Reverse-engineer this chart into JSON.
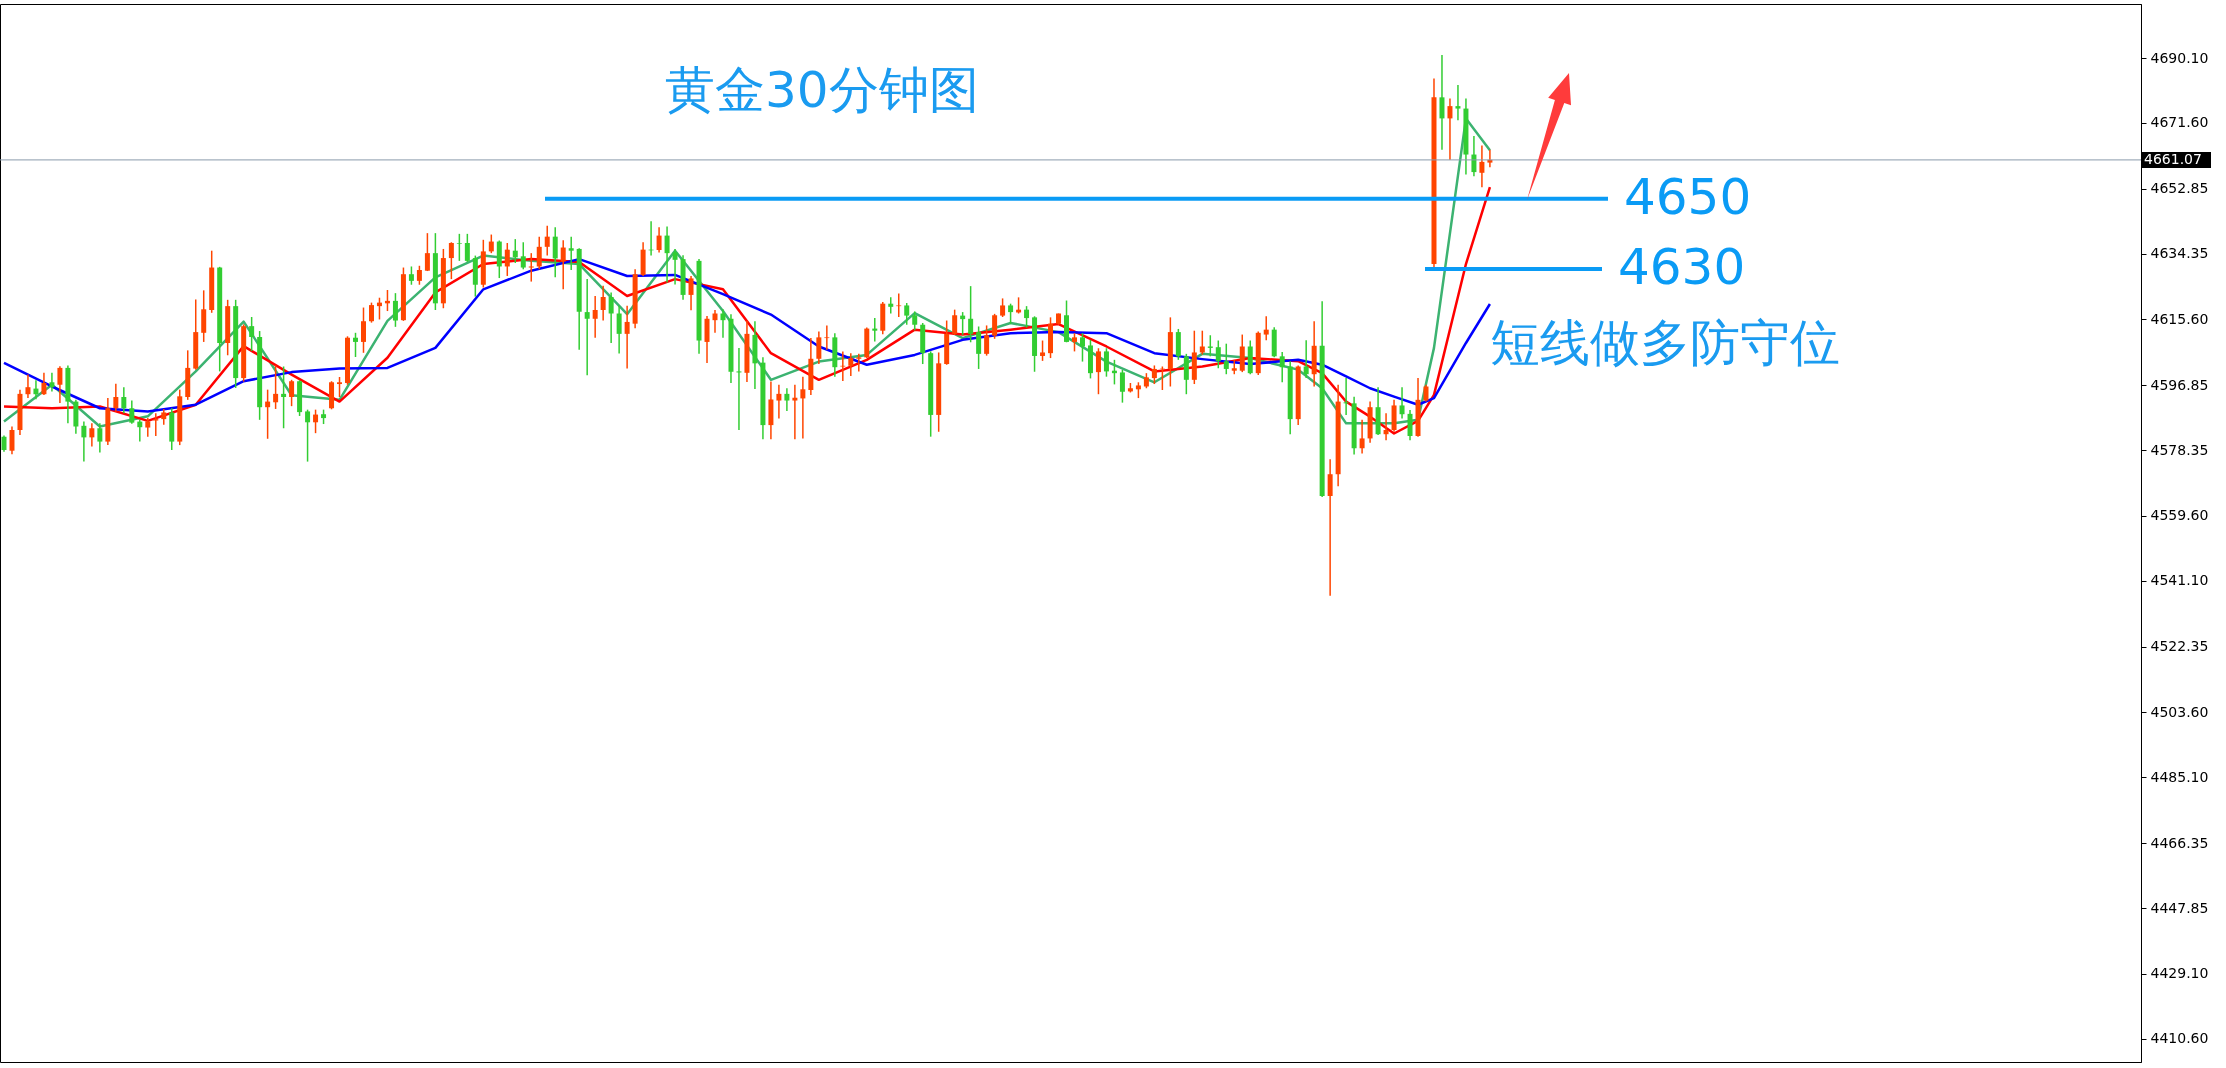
{
  "chart_data": {
    "type": "candlestick",
    "title": "黄金30分钟图",
    "tick_labels": "y",
    "categories": [
      null,
      null,
      null,
      null,
      null,
      null,
      null,
      null,
      null,
      null,
      null,
      null,
      null,
      null,
      null,
      null,
      null,
      null,
      null,
      null,
      null,
      null,
      null,
      null,
      null,
      null,
      null,
      null,
      null,
      null,
      null,
      null,
      null,
      null,
      null,
      null,
      null,
      null,
      null,
      null,
      null,
      null,
      null,
      null,
      null,
      null,
      null,
      null,
      null,
      null,
      null,
      null,
      null,
      null,
      null,
      null,
      null,
      null,
      null,
      null,
      null,
      null,
      null,
      null,
      null,
      null,
      null,
      null,
      null,
      null,
      null,
      null,
      null,
      null,
      null,
      null,
      null,
      null,
      null,
      null,
      null,
      null,
      null,
      null,
      null,
      null,
      null,
      null,
      null,
      null,
      null,
      null,
      null,
      null,
      null,
      null,
      null,
      null,
      null,
      null,
      null,
      null,
      null,
      null,
      null,
      null,
      null,
      null,
      null,
      null,
      null,
      null,
      null,
      null,
      null,
      null,
      null,
      null,
      null,
      null,
      null,
      null,
      null,
      null,
      null,
      null,
      null,
      null,
      null,
      null,
      null,
      null,
      null,
      null,
      null,
      null,
      null,
      null,
      null,
      null,
      null,
      null,
      null,
      null,
      null,
      null,
      null,
      null,
      null,
      null,
      null,
      null,
      null,
      null,
      null,
      null,
      null,
      null,
      null,
      null,
      null,
      null,
      null,
      null,
      null,
      null,
      null,
      null,
      null,
      null,
      null,
      null,
      null,
      null,
      null,
      null,
      null,
      null,
      null,
      null,
      null,
      null,
      null,
      null,
      null,
      null,
      null,
      null,
      null,
      null,
      null,
      null,
      null,
      null,
      null,
      null,
      null,
      null,
      null,
      null,
      null,
      null,
      null,
      null,
      null,
      null,
      null,
      null,
      null,
      null,
      null,
      null,
      null,
      null,
      null,
      null,
      null,
      null,
      null,
      null,
      null,
      null,
      null,
      null,
      null,
      null,
      null,
      null,
      null,
      null,
      null,
      null,
      null,
      null,
      null,
      null,
      null,
      null,
      null,
      null,
      null,
      null,
      null,
      null,
      null,
      null,
      null,
      null,
      null,
      null,
      null,
      null,
      null,
      null,
      null,
      null,
      null,
      null,
      null,
      null,
      null,
      null,
      null,
      null,
      null,
      null,
      null,
      null
    ],
    "ohlc": [
      [
        4582.2,
        4582.5,
        4577.9,
        4578.4
      ],
      [
        4578.2,
        4585.1,
        4577.2,
        4584.1
      ],
      [
        4584.1,
        4595.6,
        4582.7,
        4594.4
      ],
      [
        4594.3,
        4599.9,
        4593.2,
        4596.3
      ],
      [
        4595.9,
        4598.3,
        4592.9,
        4594.3
      ],
      [
        4594.3,
        4600.4,
        4594.1,
        4597.5
      ],
      [
        4597.7,
        4600.4,
        4595.1,
        4596.3
      ],
      [
        4597.0,
        4602.3,
        4591.8,
        4601.8
      ],
      [
        4601.8,
        4602.5,
        4586.0,
        4592.2
      ],
      [
        4592.2,
        4592.7,
        4583.0,
        4585.1
      ],
      [
        4585.3,
        4586.5,
        4575.1,
        4582.0
      ],
      [
        4582.0,
        4586.0,
        4579.4,
        4584.6
      ],
      [
        4584.6,
        4586.0,
        4577.7,
        4580.8
      ],
      [
        4580.8,
        4593.2,
        4579.8,
        4590.3
      ],
      [
        4590.3,
        4597.3,
        4589.4,
        4593.5
      ],
      [
        4593.5,
        4596.3,
        4588.9,
        4590.3
      ],
      [
        4590.3,
        4592.5,
        4585.9,
        4586.2
      ],
      [
        4586.5,
        4587.0,
        4580.8,
        4584.9
      ],
      [
        4584.8,
        4587.5,
        4582.2,
        4586.5
      ],
      [
        4586.8,
        4588.9,
        4582.4,
        4587.2
      ],
      [
        4587.2,
        4590.1,
        4585.6,
        4589.1
      ],
      [
        4589.1,
        4590.3,
        4578.4,
        4580.8
      ],
      [
        4580.8,
        4595.6,
        4579.8,
        4593.7
      ],
      [
        4593.5,
        4606.8,
        4592.7,
        4601.8
      ],
      [
        4601.6,
        4621.3,
        4601.3,
        4612.0
      ],
      [
        4611.8,
        4623.9,
        4609.2,
        4618.5
      ],
      [
        4618.3,
        4635.2,
        4617.5,
        4630.4
      ],
      [
        4630.4,
        4630.6,
        4600.8,
        4608.9
      ],
      [
        4608.9,
        4621.2,
        4605.4,
        4619.4
      ],
      [
        4619.4,
        4621.2,
        4596.1,
        4598.9
      ],
      [
        4598.9,
        4614.2,
        4597.9,
        4613.7
      ],
      [
        4613.7,
        4616.3,
        4606.6,
        4610.6
      ],
      [
        4610.6,
        4612.3,
        4587.0,
        4590.6
      ],
      [
        4590.6,
        4595.6,
        4581.6,
        4592.2
      ],
      [
        4592.0,
        4602.5,
        4590.1,
        4594.4
      ],
      [
        4594.4,
        4602.2,
        4584.6,
        4593.5
      ],
      [
        4593.5,
        4598.4,
        4590.9,
        4598.0
      ],
      [
        4598.0,
        4598.3,
        4588.1,
        4589.2
      ],
      [
        4589.4,
        4589.9,
        4575.1,
        4586.3
      ],
      [
        4586.3,
        4589.9,
        4583.2,
        4588.5
      ],
      [
        4588.6,
        4589.9,
        4585.8,
        4587.5
      ],
      [
        4590.3,
        4598.0,
        4590.0,
        4597.7
      ],
      [
        4597.2,
        4599.2,
        4593.5,
        4597.7
      ],
      [
        4597.5,
        4610.8,
        4597.0,
        4610.4
      ],
      [
        4610.4,
        4611.8,
        4604.9,
        4609.2
      ],
      [
        4609.2,
        4619.0,
        4606.1,
        4615.1
      ],
      [
        4615.1,
        4620.4,
        4614.7,
        4619.7
      ],
      [
        4619.4,
        4621.8,
        4615.6,
        4620.4
      ],
      [
        4620.2,
        4624.0,
        4618.0,
        4620.9
      ],
      [
        4620.9,
        4623.1,
        4613.5,
        4615.3
      ],
      [
        4615.4,
        4630.4,
        4615.2,
        4628.5
      ],
      [
        4628.5,
        4630.7,
        4625.5,
        4626.6
      ],
      [
        4626.6,
        4630.9,
        4625.5,
        4629.7
      ],
      [
        4629.5,
        4640.2,
        4629.4,
        4634.5
      ],
      [
        4634.5,
        4640.2,
        4618.3,
        4620.2
      ],
      [
        4620.2,
        4635.7,
        4618.8,
        4633.1
      ],
      [
        4633.1,
        4637.6,
        4627.1,
        4637.4
      ],
      [
        4637.4,
        4640.0,
        4632.3,
        4637.2
      ],
      [
        4637.4,
        4640.0,
        4632.0,
        4632.3
      ],
      [
        4633.1,
        4633.8,
        4622.1,
        4625.5
      ],
      [
        4625.5,
        4638.3,
        4624.7,
        4635.0
      ],
      [
        4635.0,
        4639.8,
        4634.5,
        4637.8
      ],
      [
        4637.8,
        4638.1,
        4627.4,
        4630.7
      ],
      [
        4630.7,
        4637.4,
        4628.0,
        4635.5
      ],
      [
        4635.2,
        4638.5,
        4631.7,
        4633.3
      ],
      [
        4633.6,
        4637.6,
        4629.9,
        4630.4
      ],
      [
        4630.4,
        4634.5,
        4626.4,
        4630.7
      ],
      [
        4630.7,
        4639.2,
        4629.9,
        4636.3
      ],
      [
        4636.3,
        4642.3,
        4633.8,
        4639.2
      ],
      [
        4639.2,
        4641.9,
        4627.6,
        4633.0
      ],
      [
        4632.1,
        4638.2,
        4624.2,
        4636.1
      ],
      [
        4635.9,
        4639.2,
        4629.7,
        4635.2
      ],
      [
        4635.7,
        4635.9,
        4607.0,
        4617.8
      ],
      [
        4617.7,
        4627.1,
        4599.7,
        4615.8
      ],
      [
        4615.8,
        4622.3,
        4610.4,
        4618.3
      ],
      [
        4618.3,
        4625.2,
        4615.3,
        4622.0
      ],
      [
        4622.0,
        4623.3,
        4608.9,
        4617.3
      ],
      [
        4617.3,
        4619.5,
        4605.9,
        4611.5
      ],
      [
        4611.5,
        4619.5,
        4601.6,
        4614.9
      ],
      [
        4614.4,
        4629.9,
        4613.1,
        4628.5
      ],
      [
        4628.3,
        4637.6,
        4628.0,
        4635.5
      ],
      [
        4635.5,
        4643.6,
        4633.8,
        4635.3
      ],
      [
        4635.4,
        4641.9,
        4634.7,
        4639.5
      ],
      [
        4639.5,
        4642.1,
        4626.1,
        4634.5
      ],
      [
        4634.7,
        4635.7,
        4625.6,
        4632.6
      ],
      [
        4632.8,
        4633.9,
        4621.2,
        4622.6
      ],
      [
        4622.6,
        4628.0,
        4618.2,
        4627.3
      ],
      [
        4632.3,
        4632.8,
        4605.8,
        4609.6
      ],
      [
        4609.2,
        4616.6,
        4603.2,
        4615.8
      ],
      [
        4615.4,
        4618.3,
        4611.8,
        4617.3
      ],
      [
        4617.3,
        4618.5,
        4610.4,
        4615.4
      ],
      [
        4615.8,
        4617.1,
        4597.5,
        4600.7
      ],
      [
        4600.8,
        4607.5,
        4584.1,
        4600.5
      ],
      [
        4600.4,
        4615.2,
        4597.8,
        4611.5
      ],
      [
        4611.2,
        4615.1,
        4595.8,
        4603.1
      ],
      [
        4603.3,
        4604.8,
        4581.5,
        4585.5
      ],
      [
        4585.5,
        4597.9,
        4581.5,
        4592.8
      ],
      [
        4592.5,
        4597.0,
        4587.4,
        4594.4
      ],
      [
        4594.4,
        4596.0,
        4589.5,
        4592.5
      ],
      [
        4592.5,
        4597.0,
        4581.5,
        4593.3
      ],
      [
        4593.1,
        4599.3,
        4581.7,
        4595.7
      ],
      [
        4595.5,
        4610.3,
        4594.1,
        4604.4
      ],
      [
        4604.4,
        4612.2,
        4602.9,
        4610.5
      ],
      [
        4610.3,
        4613.9,
        4607.0,
        4610.5
      ],
      [
        4610.5,
        4611.7,
        4599.3,
        4602.0
      ],
      [
        4602.2,
        4606.5,
        4598.1,
        4602.4
      ],
      [
        4602.4,
        4606.0,
        4599.5,
        4604.6
      ],
      [
        4604.4,
        4605.8,
        4600.8,
        4604.8
      ],
      [
        4604.8,
        4613.3,
        4604.6,
        4613.0
      ],
      [
        4613.0,
        4616.0,
        4609.3,
        4612.4
      ],
      [
        4612.4,
        4620.6,
        4611.4,
        4620.1
      ],
      [
        4620.1,
        4621.9,
        4617.3,
        4619.2
      ],
      [
        4619.4,
        4623.0,
        4616.3,
        4619.6
      ],
      [
        4619.6,
        4620.3,
        4614.1,
        4616.7
      ],
      [
        4616.8,
        4617.9,
        4612.5,
        4614.1
      ],
      [
        4614.1,
        4614.6,
        4602.9,
        4606.0
      ],
      [
        4606.0,
        4606.5,
        4582.2,
        4588.4
      ],
      [
        4588.4,
        4606.2,
        4583.6,
        4603.1
      ],
      [
        4602.9,
        4615.3,
        4602.7,
        4611.5
      ],
      [
        4611.5,
        4618.4,
        4611.2,
        4616.8
      ],
      [
        4616.7,
        4617.7,
        4611.2,
        4615.7
      ],
      [
        4615.8,
        4625.1,
        4609.1,
        4611.5
      ],
      [
        4612.0,
        4613.6,
        4601.5,
        4605.8
      ],
      [
        4605.8,
        4613.9,
        4605.3,
        4611.1
      ],
      [
        4611.0,
        4617.2,
        4610.1,
        4616.8
      ],
      [
        4616.7,
        4621.6,
        4616.3,
        4619.6
      ],
      [
        4619.6,
        4620.1,
        4614.3,
        4617.7
      ],
      [
        4617.6,
        4621.9,
        4617.3,
        4618.4
      ],
      [
        4618.4,
        4619.4,
        4613.3,
        4616.0
      ],
      [
        4616.2,
        4616.5,
        4600.7,
        4605.2
      ],
      [
        4605.2,
        4609.6,
        4603.8,
        4606.2
      ],
      [
        4606.0,
        4616.2,
        4604.6,
        4614.4
      ],
      [
        4614.4,
        4617.3,
        4614.1,
        4617.3
      ],
      [
        4616.8,
        4621.0,
        4609.1,
        4609.2
      ],
      [
        4609.2,
        4611.7,
        4606.5,
        4610.5
      ],
      [
        4610.5,
        4611.7,
        4603.6,
        4607.9
      ],
      [
        4608.2,
        4609.8,
        4598.8,
        4600.3
      ],
      [
        4600.6,
        4607.4,
        4594.3,
        4606.5
      ],
      [
        4606.5,
        4607.4,
        4599.3,
        4600.8
      ],
      [
        4601.0,
        4604.1,
        4597.1,
        4600.3
      ],
      [
        4600.5,
        4601.2,
        4591.9,
        4595.0
      ],
      [
        4595.1,
        4597.5,
        4594.8,
        4596.0
      ],
      [
        4595.7,
        4597.7,
        4593.2,
        4596.8
      ],
      [
        4596.5,
        4600.3,
        4596.0,
        4599.1
      ],
      [
        4598.9,
        4602.5,
        4597.2,
        4601.5
      ],
      [
        4601.6,
        4602.2,
        4595.5,
        4601.7
      ],
      [
        4601.5,
        4616.2,
        4596.5,
        4612.0
      ],
      [
        4612.0,
        4612.9,
        4604.1,
        4605.1
      ],
      [
        4605.1,
        4605.8,
        4594.3,
        4598.4
      ],
      [
        4598.4,
        4612.4,
        4597.2,
        4606.2
      ],
      [
        4606.2,
        4612.4,
        4605.6,
        4607.9
      ],
      [
        4607.9,
        4611.1,
        4605.1,
        4607.5
      ],
      [
        4607.7,
        4609.6,
        4601.7,
        4603.7
      ],
      [
        4603.7,
        4608.7,
        4600.0,
        4601.5
      ],
      [
        4601.0,
        4604.1,
        4600.0,
        4601.7
      ],
      [
        4601.0,
        4611.3,
        4600.6,
        4607.9
      ],
      [
        4607.9,
        4609.6,
        4600.0,
        4600.3
      ],
      [
        4600.3,
        4612.2,
        4599.8,
        4611.8
      ],
      [
        4611.3,
        4616.5,
        4609.7,
        4612.7
      ],
      [
        4612.7,
        4613.4,
        4604.8,
        4605.1
      ],
      [
        4605.1,
        4606.3,
        4597.7,
        4602.0
      ],
      [
        4602.2,
        4603.7,
        4582.9,
        4587.2
      ],
      [
        4587.2,
        4602.5,
        4585.5,
        4602.2
      ],
      [
        4602.2,
        4609.7,
        4598.9,
        4600.0
      ],
      [
        4600.0,
        4615.1,
        4596.5,
        4608.1
      ],
      [
        4608.1,
        4620.8,
        4565.0,
        4565.3
      ],
      [
        4565.3,
        4575.8,
        4536.9,
        4571.5
      ],
      [
        4571.5,
        4597.0,
        4568.1,
        4592.2
      ],
      [
        4592.0,
        4598.9,
        4588.4,
        4591.7
      ],
      [
        4591.7,
        4593.6,
        4577.1,
        4578.9
      ],
      [
        4578.9,
        4587.0,
        4577.4,
        4581.7
      ],
      [
        4581.7,
        4592.2,
        4580.5,
        4590.6
      ],
      [
        4590.6,
        4596.3,
        4582.7,
        4582.9
      ],
      [
        4582.9,
        4588.9,
        4581.2,
        4584.1
      ],
      [
        4584.1,
        4592.7,
        4583.6,
        4591.1
      ],
      [
        4591.1,
        4596.3,
        4587.4,
        4588.6
      ],
      [
        4588.7,
        4589.8,
        4581.2,
        4582.4
      ],
      [
        4582.4,
        4598.9,
        4582.2,
        4592.7
      ],
      [
        4592.5,
        4597.0,
        4592.2,
        4596.5
      ],
      [
        4631.4,
        4684.3,
        4630.0,
        4678.9
      ],
      [
        4678.9,
        4691.0,
        4664.0,
        4672.9
      ],
      [
        4672.9,
        4678.6,
        4661.1,
        4676.4
      ],
      [
        4676.4,
        4682.4,
        4672.4,
        4675.7
      ],
      [
        4675.7,
        4678.6,
        4656.9,
        4662.6
      ],
      [
        4662.6,
        4667.9,
        4656.4,
        4657.6
      ],
      [
        4657.4,
        4665.2,
        4653.3,
        4660.5
      ],
      [
        4660.3,
        4664.0,
        4659.0,
        4661.1
      ],
      null,
      null,
      null,
      null,
      null,
      null,
      null,
      null,
      null,
      null,
      null,
      null,
      null,
      null,
      null,
      null,
      null,
      null,
      null,
      null,
      null,
      null,
      null,
      null,
      null,
      null,
      null,
      null,
      null,
      null,
      null,
      null,
      null,
      null,
      null,
      null,
      null,
      null,
      null,
      null,
      null,
      null,
      null,
      null,
      null,
      null,
      null,
      null,
      null,
      null,
      null,
      null,
      null,
      null,
      null,
      null,
      null,
      null,
      null,
      null,
      null,
      null,
      null,
      null,
      null,
      null,
      null,
      null,
      null,
      null,
      null,
      null,
      null,
      null,
      null,
      null,
      null,
      null,
      null,
      null,
      null
    ],
    "colors": [
      "#32cd32",
      "#ff4500",
      "#ff4500",
      "#ff4500",
      "#32cd32",
      "#ff4500",
      "#32cd32",
      "#ff4500",
      "#32cd32",
      "#32cd32",
      "#32cd32",
      "#ff4500",
      "#32cd32",
      "#ff4500",
      "#ff4500",
      "#32cd32",
      "#32cd32",
      "#32cd32",
      "#ff4500",
      "#ff4500",
      "#ff4500",
      "#32cd32",
      "#ff4500",
      "#ff4500",
      "#ff4500",
      "#ff4500",
      "#ff4500",
      "#32cd32",
      "#ff4500",
      "#32cd32",
      "#ff4500",
      "#32cd32",
      "#32cd32",
      "#ff4500",
      "#ff4500",
      "#32cd32",
      "#ff4500",
      "#32cd32",
      "#32cd32",
      "#ff4500",
      "#32cd32",
      "#ff4500",
      "#ff4500",
      "#ff4500",
      "#32cd32",
      "#ff4500",
      "#ff4500",
      "#ff4500",
      "#ff4500",
      "#32cd32",
      "#ff4500",
      "#32cd32",
      "#ff4500",
      "#ff4500",
      "#32cd32",
      "#ff4500",
      "#ff4500",
      "#32cd32",
      "#32cd32",
      "#32cd32",
      "#ff4500",
      "#ff4500",
      "#32cd32",
      "#ff4500",
      "#32cd32",
      "#32cd32",
      "#ff4500",
      "#ff4500",
      "#ff4500",
      "#32cd32",
      "#ff4500",
      "#32cd32",
      "#32cd32",
      "#32cd32",
      "#ff4500",
      "#ff4500",
      "#32cd32",
      "#32cd32",
      "#ff4500",
      "#ff4500",
      "#ff4500",
      "#32cd32",
      "#ff4500",
      "#32cd32",
      "#32cd32",
      "#32cd32",
      "#ff4500",
      "#32cd32",
      "#ff4500",
      "#ff4500",
      "#32cd32",
      "#32cd32",
      "#32cd32",
      "#ff4500",
      "#32cd32",
      "#32cd32",
      "#ff4500",
      "#ff4500",
      "#32cd32",
      "#ff4500",
      "#ff4500",
      "#ff4500",
      "#ff4500",
      "#ff4500",
      "#32cd32",
      "#ff4500",
      "#ff4500",
      "#ff4500",
      "#ff4500",
      "#32cd32",
      "#ff4500",
      "#32cd32",
      "#ff4500",
      "#32cd32",
      "#32cd32",
      "#32cd32",
      "#32cd32",
      "#ff4500",
      "#ff4500",
      "#ff4500",
      "#32cd32",
      "#32cd32",
      "#32cd32",
      "#ff4500",
      "#ff4500",
      "#ff4500",
      "#32cd32",
      "#ff4500",
      "#32cd32",
      "#32cd32",
      "#ff4500",
      "#ff4500",
      "#ff4500",
      "#32cd32",
      "#ff4500",
      "#32cd32",
      "#32cd32",
      "#ff4500",
      "#32cd32",
      "#32cd32",
      "#32cd32",
      "#ff4500",
      "#ff4500",
      "#ff4500",
      "#ff4500",
      "#ff4500",
      "#ff4500",
      "#32cd32",
      "#32cd32",
      "#ff4500",
      "#ff4500",
      "#32cd32",
      "#32cd32",
      "#32cd32",
      "#ff4500",
      "#ff4500",
      "#32cd32",
      "#ff4500",
      "#ff4500",
      "#32cd32",
      "#32cd32",
      "#32cd32",
      "#ff4500",
      "#32cd32",
      "#ff4500",
      "#32cd32",
      "#ff4500",
      "#ff4500",
      "#32cd32",
      "#32cd32",
      "#ff4500",
      "#ff4500",
      "#32cd32",
      "#ff4500",
      "#ff4500",
      "#32cd32",
      "#32cd32",
      "#ff4500",
      "#ff4500",
      "#ff4500",
      "#32cd32",
      "#ff4500",
      "#32cd32",
      "#32cd32",
      "#32cd32",
      "#ff4500",
      "#ff4500",
      null,
      null,
      null,
      null,
      null,
      null,
      null,
      null,
      null,
      null,
      null,
      null,
      null,
      null,
      null,
      null,
      null,
      null,
      null,
      null,
      null,
      null,
      null,
      null,
      null,
      null,
      null,
      null,
      null,
      null,
      null,
      null,
      null,
      null,
      null,
      null,
      null,
      null,
      null,
      null,
      null,
      null,
      null,
      null,
      null,
      null,
      null,
      null,
      null,
      null,
      null,
      null,
      null,
      null,
      null,
      null,
      null,
      null,
      null,
      null,
      null,
      null,
      null,
      null,
      null,
      null,
      null,
      null,
      null,
      null,
      null,
      null,
      null,
      null,
      null,
      null,
      null,
      null,
      null,
      null,
      null
    ],
    "series": [
      {
        "type": "line",
        "color": "#3cb371",
        "values": [
          4586.5,
          null,
          null,
          null,
          null,
          null,
          4597.0,
          null,
          null,
          null,
          null,
          null,
          4585.1,
          null,
          null,
          null,
          null,
          null,
          4588.0,
          null,
          null,
          null,
          null,
          null,
          4600.8,
          null,
          null,
          null,
          null,
          null,
          4615.0,
          null,
          null,
          null,
          null,
          null,
          4594.0,
          null,
          null,
          null,
          null,
          null,
          4592.7,
          null,
          null,
          null,
          null,
          null,
          4615.2,
          null,
          null,
          null,
          null,
          null,
          4627.6,
          null,
          null,
          null,
          null,
          null,
          4633.8,
          null,
          null,
          null,
          null,
          null,
          4632.3,
          null,
          null,
          null,
          null,
          null,
          4631.4,
          null,
          null,
          null,
          null,
          null,
          4617.1,
          null,
          null,
          null,
          null,
          null,
          4635.2,
          null,
          null,
          null,
          null,
          null,
          4618.0,
          null,
          null,
          null,
          null,
          null,
          4598.4,
          null,
          null,
          null,
          null,
          null,
          4603.6,
          null,
          null,
          null,
          null,
          null,
          4605.5,
          null,
          null,
          null,
          null,
          null,
          4617.4,
          null,
          null,
          null,
          null,
          null,
          4610.3,
          null,
          null,
          null,
          null,
          null,
          4614.6,
          null,
          null,
          null,
          null,
          null,
          4612.0,
          null,
          null,
          null,
          null,
          null,
          4603.6,
          null,
          null,
          null,
          null,
          null,
          4597.7,
          null,
          null,
          null,
          null,
          null,
          4605.8,
          null,
          null,
          null,
          null,
          null,
          4604.6,
          null,
          null,
          null,
          null,
          null,
          4601.3,
          null,
          null,
          4596.0,
          null,
          null,
          4586.0,
          null,
          null,
          4586.0,
          null,
          null,
          4586.0,
          null,
          null,
          4587.0,
          null,
          4607.5,
          null,
          null,
          null,
          4672.9,
          null,
          null,
          4663.8,
          null,
          null,
          null,
          null,
          null,
          null,
          null,
          null,
          null,
          null,
          null,
          null,
          null,
          null,
          null,
          null,
          null,
          null,
          null,
          null,
          null,
          null,
          null,
          null,
          null,
          null,
          null,
          null,
          null,
          null,
          null,
          null,
          null,
          null,
          null,
          null,
          null,
          null,
          null,
          null,
          null,
          null,
          null,
          null,
          null,
          null,
          null,
          null,
          null,
          null,
          null,
          null,
          null,
          null,
          null,
          null,
          null,
          null,
          null,
          null,
          null,
          null,
          null,
          null,
          null,
          null,
          null,
          null,
          null,
          null,
          null,
          null,
          null,
          null,
          null,
          null,
          null,
          null,
          null,
          null,
          null
        ]
      },
      {
        "type": "line",
        "color": "#ff0000",
        "values": [
          4590.8,
          null,
          null,
          null,
          null,
          null,
          4590.3,
          null,
          null,
          null,
          null,
          null,
          4590.8,
          null,
          null,
          null,
          null,
          null,
          4586.7,
          null,
          null,
          null,
          null,
          null,
          4591.3,
          null,
          null,
          null,
          null,
          null,
          4608.0,
          null,
          null,
          null,
          null,
          null,
          4599.9,
          null,
          null,
          null,
          null,
          null,
          4592.2,
          null,
          null,
          null,
          null,
          null,
          4604.7,
          null,
          null,
          null,
          null,
          null,
          4623.3,
          null,
          null,
          null,
          null,
          null,
          4631.4,
          null,
          null,
          null,
          null,
          null,
          4632.8,
          null,
          null,
          null,
          null,
          null,
          4632.0,
          null,
          null,
          null,
          null,
          null,
          4622.3,
          null,
          null,
          null,
          null,
          null,
          4627.1,
          null,
          null,
          null,
          null,
          null,
          4624.2,
          null,
          null,
          null,
          null,
          null,
          4606.0,
          null,
          null,
          null,
          null,
          null,
          4598.4,
          null,
          null,
          null,
          null,
          null,
          4604.1,
          null,
          null,
          null,
          null,
          null,
          4612.7,
          null,
          null,
          null,
          null,
          null,
          4611.3,
          null,
          null,
          null,
          null,
          null,
          4612.7,
          null,
          null,
          null,
          null,
          null,
          4614.3,
          null,
          null,
          null,
          null,
          null,
          4607.9,
          null,
          null,
          null,
          null,
          null,
          4600.8,
          null,
          null,
          null,
          null,
          null,
          4602.2,
          null,
          null,
          null,
          null,
          null,
          4604.6,
          null,
          null,
          null,
          null,
          null,
          4603.7,
          null,
          null,
          4600.3,
          null,
          null,
          4592.2,
          null,
          null,
          4587.9,
          null,
          null,
          4583.1,
          null,
          null,
          4586.7,
          null,
          4594.1,
          null,
          null,
          null,
          4631.4,
          null,
          null,
          4653.3,
          null,
          null,
          null,
          null,
          null,
          null,
          null,
          null,
          null,
          null,
          null,
          null,
          null,
          null,
          null,
          null,
          null,
          null,
          null,
          null,
          null,
          null,
          null,
          null,
          null,
          null,
          null,
          null,
          null,
          null,
          null,
          null,
          null,
          null,
          null,
          null,
          null,
          null,
          null,
          null,
          null,
          null,
          null,
          null,
          null,
          null,
          null,
          null,
          null,
          null,
          null,
          null,
          null,
          null,
          null,
          null,
          null,
          null,
          null,
          null,
          null,
          null,
          null,
          null,
          null,
          null,
          null,
          null,
          null,
          null,
          null,
          null,
          null,
          null,
          null,
          null,
          null,
          null,
          null,
          null,
          null
        ]
      },
      {
        "type": "line",
        "color": "#0000ff",
        "values": [
          4603.2,
          null,
          null,
          null,
          null,
          null,
          4596.5,
          null,
          null,
          null,
          null,
          null,
          4590.3,
          null,
          null,
          null,
          null,
          null,
          4589.4,
          null,
          null,
          null,
          null,
          null,
          4591.3,
          null,
          null,
          null,
          null,
          null,
          4598.0,
          null,
          null,
          null,
          null,
          null,
          4600.6,
          null,
          null,
          null,
          null,
          null,
          4601.6,
          null,
          null,
          null,
          null,
          null,
          4601.8,
          null,
          null,
          null,
          null,
          null,
          4607.5,
          null,
          null,
          null,
          null,
          null,
          4624.2,
          null,
          null,
          null,
          null,
          null,
          4629.5,
          null,
          null,
          null,
          null,
          null,
          4632.8,
          null,
          null,
          null,
          null,
          null,
          4628.0,
          null,
          null,
          null,
          null,
          null,
          4628.3,
          null,
          null,
          null,
          null,
          null,
          4622.8,
          null,
          null,
          null,
          null,
          null,
          4617.0,
          null,
          null,
          null,
          null,
          null,
          4607.9,
          null,
          null,
          null,
          null,
          null,
          4602.7,
          null,
          null,
          null,
          null,
          null,
          4605.5,
          null,
          null,
          null,
          null,
          null,
          4609.8,
          null,
          null,
          null,
          null,
          null,
          4611.7,
          null,
          null,
          null,
          null,
          null,
          4612.0,
          null,
          null,
          null,
          null,
          null,
          4611.7,
          null,
          null,
          null,
          null,
          null,
          4606.0,
          null,
          null,
          null,
          null,
          null,
          4604.3,
          null,
          null,
          null,
          null,
          null,
          4602.9,
          null,
          null,
          null,
          null,
          null,
          4604.1,
          null,
          null,
          4602.7,
          null,
          null,
          4599.4,
          null,
          null,
          4596.0,
          null,
          null,
          4593.6,
          null,
          null,
          4591.3,
          null,
          4593.2,
          null,
          null,
          null,
          4608.9,
          null,
          null,
          4620.0,
          null,
          null,
          null,
          null,
          null,
          null,
          null,
          null,
          null,
          null,
          null,
          null,
          null,
          null,
          null,
          null,
          null,
          null,
          null,
          null,
          null,
          null,
          null,
          null,
          null,
          null,
          null,
          null,
          null,
          null,
          null,
          null,
          null,
          null,
          null,
          null,
          null,
          null,
          null,
          null,
          null,
          null,
          null,
          null,
          null,
          null,
          null,
          null,
          null,
          null,
          null,
          null,
          null,
          null,
          null,
          null,
          null,
          null,
          null,
          null,
          null,
          null,
          null,
          null,
          null,
          null,
          null,
          null,
          null,
          null,
          null,
          null,
          null,
          null,
          null,
          null,
          null,
          null,
          null,
          null,
          null
        ]
      }
    ],
    "ylim": [
      4404,
      4705.5
    ],
    "yticks": [
      {
        "value": 4690.1,
        "label": "4690.10"
      },
      {
        "value": 4671.6,
        "label": "4671.60"
      },
      {
        "value": 4652.85,
        "label": "4652.85"
      },
      {
        "value": 4634.35,
        "label": "4634.35"
      },
      {
        "value": 4615.6,
        "label": "4615.60"
      },
      {
        "value": 4596.85,
        "label": "4596.85"
      },
      {
        "value": 4578.35,
        "label": "4578.35"
      },
      {
        "value": 4559.6,
        "label": "4559.60"
      },
      {
        "value": 4541.1,
        "label": "4541.10"
      },
      {
        "value": 4522.35,
        "label": "4522.35"
      },
      {
        "value": 4503.6,
        "label": "4503.60"
      },
      {
        "value": 4485.1,
        "label": "4485.10"
      },
      {
        "value": 4466.35,
        "label": "4466.35"
      },
      {
        "value": 4447.85,
        "label": "4447.85"
      },
      {
        "value": 4429.1,
        "label": "4429.10"
      },
      {
        "value": 4410.6,
        "label": "4410.60"
      }
    ],
    "ref_lines": [
      {
        "axis": "y",
        "value": 4650,
        "label": "4650",
        "color": "#0a9bf5"
      },
      {
        "axis": "y",
        "value": 4630,
        "label": "4630",
        "color": "#0a9bf5"
      },
      {
        "axis": "y",
        "value": 4661.07,
        "label": "4661.07",
        "color": "#8a9aab"
      }
    ],
    "annotations": [
      "短线做多防守位"
    ]
  }
}
